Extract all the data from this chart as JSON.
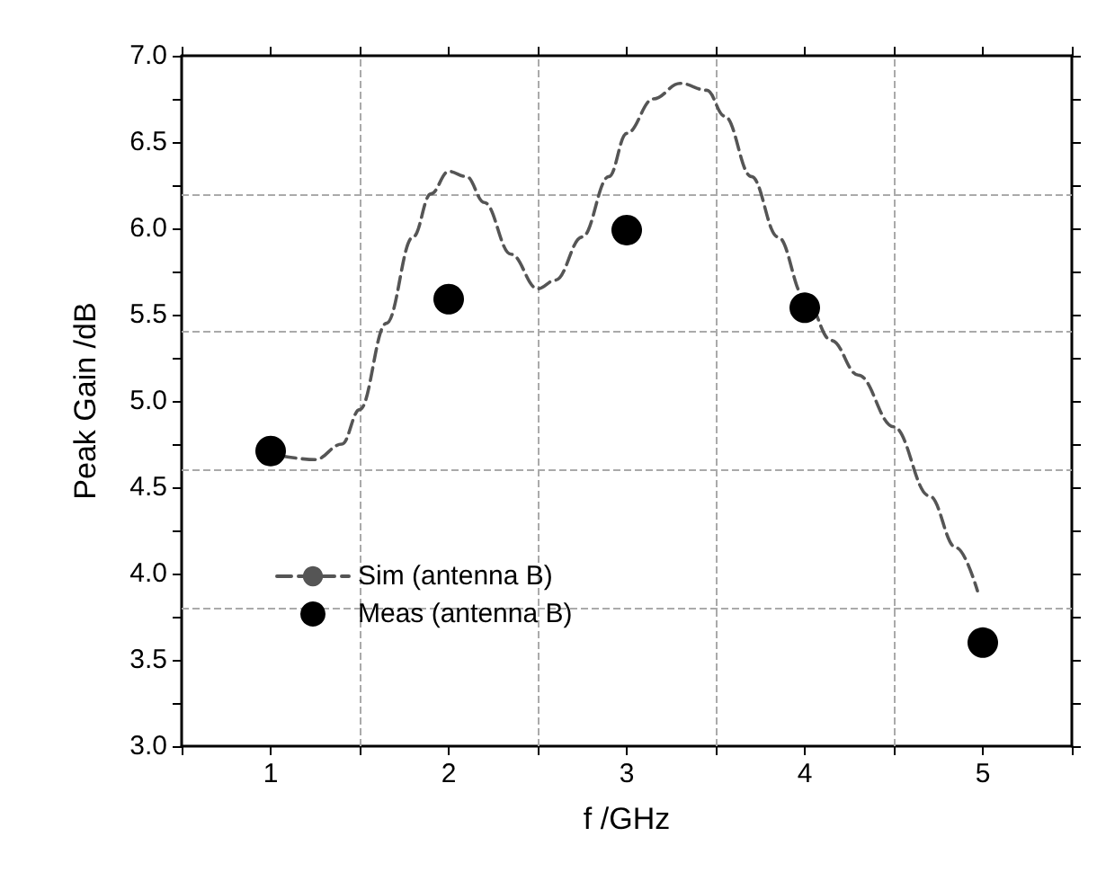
{
  "chart_data": {
    "type": "line",
    "xlabel": "f /GHz",
    "ylabel": "Peak Gain /dB",
    "xlim": [
      0.5,
      5.5
    ],
    "xticks": [
      {
        "value": 0.5,
        "label": null
      },
      1,
      {
        "value": 1.5,
        "label": null
      },
      2,
      {
        "value": 2.5,
        "label": null
      },
      3,
      {
        "value": 3.5,
        "label": null
      },
      4,
      {
        "value": 4.5,
        "label": null
      },
      5,
      {
        "value": 5.5,
        "label": null
      }
    ],
    "ylim": [
      3,
      7
    ],
    "yticks": [
      {
        "value": 3,
        "label": "3.0"
      },
      {
        "value": 3.25,
        "label": null
      },
      {
        "value": 3.5,
        "label": "3.5"
      },
      {
        "value": 3.75,
        "label": null
      },
      {
        "value": 4,
        "label": "4.0"
      },
      {
        "value": 4.25,
        "label": null
      },
      {
        "value": 4.5,
        "label": "4.5"
      },
      {
        "value": 4.75,
        "label": null
      },
      {
        "value": 5,
        "label": "5.0"
      },
      {
        "value": 5.25,
        "label": null
      },
      {
        "value": 5.5,
        "label": "5.5"
      },
      {
        "value": 5.75,
        "label": null
      },
      {
        "value": 6,
        "label": "6.0"
      },
      {
        "value": 6.25,
        "label": null
      },
      {
        "value": 6.5,
        "label": "6.5"
      },
      {
        "value": 6.75,
        "label": null
      },
      {
        "value": 7,
        "label": "7.0"
      }
    ],
    "grid": false,
    "legend": "bottom left",
    "series": [
      {
        "name": "Sim (antenna B)",
        "color": "#555555",
        "line_style": "dashed",
        "marker": "none",
        "x": [
          1.07,
          1.25,
          1.4,
          1.5,
          1.65,
          1.8,
          1.9,
          2.0,
          2.1,
          2.2,
          2.35,
          2.5,
          2.6,
          2.75,
          2.9,
          3.0,
          3.15,
          3.3,
          3.45,
          3.55,
          3.7,
          3.85,
          4.0,
          4.15,
          4.3,
          4.5,
          4.7,
          4.85,
          4.97
        ],
        "values": [
          4.68,
          4.66,
          4.75,
          4.95,
          5.45,
          5.95,
          6.2,
          6.33,
          6.3,
          6.15,
          5.85,
          5.65,
          5.7,
          5.95,
          6.3,
          6.55,
          6.75,
          6.84,
          6.8,
          6.65,
          6.3,
          5.95,
          5.6,
          5.35,
          5.15,
          4.85,
          4.45,
          4.15,
          3.9
        ]
      },
      {
        "name": "Meas (antenna B)",
        "type": "scatter",
        "color": "#000000",
        "marker": "circle",
        "x": [
          1,
          2,
          3,
          4,
          5
        ],
        "values": [
          4.71,
          5.59,
          5.99,
          5.54,
          3.6
        ]
      }
    ],
    "ref_lines": [
      {
        "axis": "x",
        "value": 1.5,
        "color": "#aaaaaa",
        "line_style": "dashed"
      },
      {
        "axis": "x",
        "value": 2.5,
        "color": "#aaaaaa",
        "line_style": "dashed"
      },
      {
        "axis": "x",
        "value": 3.5,
        "color": "#aaaaaa",
        "line_style": "dashed"
      },
      {
        "axis": "x",
        "value": 4.5,
        "color": "#aaaaaa",
        "line_style": "dashed"
      },
      {
        "axis": "y",
        "value": 3.8,
        "color": "#aaaaaa",
        "line_style": "dashed"
      },
      {
        "axis": "y",
        "value": 4.6,
        "color": "#aaaaaa",
        "line_style": "dashed"
      },
      {
        "axis": "y",
        "value": 5.4,
        "color": "#aaaaaa",
        "line_style": "dashed"
      },
      {
        "axis": "y",
        "value": 6.2,
        "color": "#aaaaaa",
        "line_style": "dashed"
      }
    ]
  }
}
